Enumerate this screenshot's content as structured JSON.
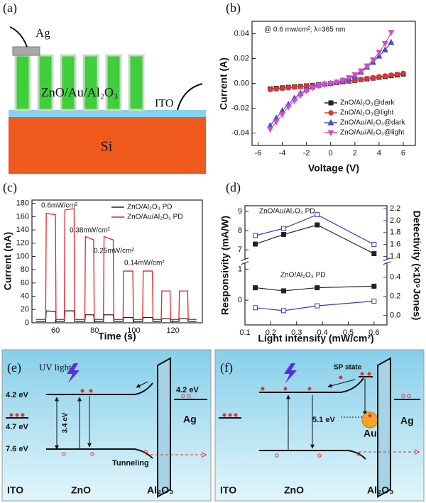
{
  "diagrams": {
    "a": {
      "label": "(a)",
      "electrode": "Ag",
      "nanorods": "ZnO/Au/Al₂O₃",
      "contact": "ITO",
      "substrate": "Si"
    },
    "e": {
      "label": "(e)",
      "light": "UV light",
      "levels": [
        "4.2 eV",
        "4.7 eV",
        "3.4 eV",
        "7.6 eV",
        "4.2 eV"
      ],
      "process": "Tunneling",
      "materials": [
        "ITO",
        "ZnO",
        "Al₂O₃",
        "Ag"
      ]
    },
    "f": {
      "label": "(f)",
      "state": "SP state",
      "levels": [
        "5.1 eV"
      ],
      "particle": "Au",
      "materials": [
        "ITO",
        "ZnO",
        "Al₂O₃",
        "Ag"
      ]
    }
  },
  "chart_data": [
    {
      "type": "line",
      "panel": "(b)",
      "xlabel": "Voltage (V)",
      "ylabel": "Current (A)",
      "annotations": [
        "@ 0.6 mw/cm²; λ=365 nm"
      ],
      "x": [
        -5,
        -4.5,
        -4,
        -3.5,
        -3,
        -2.5,
        -2,
        -1.5,
        -1,
        -0.5,
        0,
        0.5,
        1,
        1.5,
        2,
        2.5,
        3,
        3.5,
        4,
        4.5,
        5,
        5.5,
        6
      ],
      "xlim": [
        -6.5,
        7
      ],
      "xticks": [
        -6,
        -4,
        -2,
        0,
        2,
        4,
        6
      ],
      "ylim": [
        -0.05,
        0.05
      ],
      "yticks": [
        -0.04,
        -0.02,
        {
          "value": 0,
          "label": "0.00"
        },
        0.02,
        0.04
      ],
      "legend": "lower right",
      "series": [
        {
          "name": "ZnO/Al₂O₃@dark",
          "color": "#222222",
          "marker": "square",
          "values": [
            -0.0045,
            -0.004,
            -0.0036,
            -0.0032,
            -0.0028,
            -0.0024,
            -0.002,
            -0.0016,
            -0.0011,
            -0.0006,
            0,
            0.0006,
            0.0012,
            0.0018,
            0.0024,
            0.003,
            0.0036,
            0.0042,
            0.0049,
            0.0055,
            0.0062,
            0.0068,
            0.0075
          ]
        },
        {
          "name": "ZnO/Al₂O₃@light",
          "color": "#d8363a",
          "marker": "circle",
          "values": [
            -0.005,
            -0.0045,
            -0.004,
            -0.0036,
            -0.0031,
            -0.0027,
            -0.0022,
            -0.0017,
            -0.0012,
            -0.0006,
            0,
            0.0006,
            0.0013,
            0.0019,
            0.0026,
            0.0032,
            0.0039,
            0.0046,
            0.0053,
            0.006,
            0.0067,
            0.0074,
            0.0081
          ]
        },
        {
          "name": "ZnO/Au/Al₂O₃@dark",
          "color": "#4a4ad0",
          "marker": "triangle",
          "values": [
            -0.034,
            -0.028,
            -0.022,
            -0.017,
            -0.012,
            -0.008,
            -0.005,
            -0.003,
            -0.0015,
            -0.0005,
            0,
            0.0008,
            0.002,
            0.004,
            0.006,
            0.009,
            0.013,
            0.017,
            0.022,
            0.027,
            0.033,
            null,
            null
          ]
        },
        {
          "name": "ZnO/Au/Al₂O₃@light",
          "color": "#d050c0",
          "marker": "triangle-down",
          "values": [
            -0.037,
            -0.031,
            -0.025,
            -0.019,
            -0.014,
            -0.0095,
            -0.006,
            -0.0035,
            -0.0018,
            -0.0006,
            0,
            0.001,
            0.0025,
            0.0045,
            0.007,
            0.01,
            0.014,
            0.019,
            0.025,
            0.032,
            0.041,
            null,
            null
          ]
        }
      ]
    },
    {
      "type": "line",
      "panel": "(c)",
      "xlabel": "Time (s)",
      "ylabel": "Current (nA)",
      "annotations": [
        "0.6mW/cm²",
        "0.38mW/cm²",
        "0.25mW/cm²",
        "0.14mW/cm²"
      ],
      "x": [
        50,
        55,
        55.3,
        60,
        60.3,
        64.5,
        64.8,
        69.5,
        69.8,
        75,
        75.3,
        79.5,
        79.8,
        84.5,
        84.8,
        89.5,
        89.8,
        94.5,
        94.8,
        99.5,
        99.8,
        104.5,
        104.8,
        109.5,
        109.8,
        114,
        114.3,
        118.5,
        118.8,
        123,
        123.3,
        127.5,
        127.8,
        132
      ],
      "xlim": [
        48,
        135
      ],
      "xticks": [
        60,
        80,
        100,
        120
      ],
      "ylim": [
        0,
        185
      ],
      "yticks": [
        0,
        20,
        40,
        60,
        80,
        100,
        120,
        140,
        160,
        180
      ],
      "legend": "upper right",
      "series": [
        {
          "name": "ZnO/Al₂O₃ PD",
          "color": "#222222",
          "values": [
            2,
            2,
            18,
            17,
            2,
            2,
            18,
            18,
            2,
            2,
            12,
            12,
            2,
            2,
            12,
            12,
            2,
            2,
            8,
            8,
            2,
            2,
            8,
            8,
            2,
            2,
            6,
            6,
            2,
            2,
            6,
            6,
            2,
            2
          ]
        },
        {
          "name": "ZnO/Au/Al₂O₃ PD",
          "color": "#e0262b",
          "values": [
            5,
            5,
            165,
            163,
            5,
            5,
            170,
            172,
            5,
            5,
            130,
            125,
            5,
            5,
            130,
            125,
            5,
            5,
            78,
            78,
            5,
            5,
            78,
            78,
            5,
            5,
            48,
            48,
            5,
            5,
            48,
            48,
            5,
            5
          ]
        }
      ]
    },
    {
      "type": "line",
      "panel": "(d)",
      "xlabel": "Light intensity (mW/cm²)",
      "ylabel": "Responsivity (mA/W)",
      "y2label": "Detectivity (×10⁹Jones)",
      "annotations": [
        "ZnO/Au/Al₂O₃ PD",
        "ZnO/Al₂O₃ PD"
      ],
      "x": [
        0.14,
        0.25,
        0.38,
        0.6
      ],
      "xlim": [
        0.1,
        0.65
      ],
      "xticks": [
        0.1,
        0.2,
        0.3,
        0.4,
        0.5,
        0.6
      ],
      "ylim": [
        -0.8,
        9.3
      ],
      "ybreak": [
        1.2,
        6.5
      ],
      "yticks": [
        0,
        1,
        7,
        8,
        9
      ],
      "y2lim": [
        -0.1,
        2.25
      ],
      "y2break": [
        0.55,
        1.35
      ],
      "y2ticks": [
        {
          "value": 0,
          "label": "0.0"
        },
        0.2,
        0.4,
        1.4,
        1.6,
        1.8,
        {
          "value": 2,
          "label": "2.0"
        },
        2.2
      ],
      "series": [
        {
          "color": "#222222",
          "marker": "square",
          "values": [
            7.3,
            7.8,
            8.3,
            6.8
          ]
        },
        {
          "color": "#3a3ab0",
          "marker": "square-open",
          "axis": "y2",
          "values": [
            1.75,
            1.87,
            2.1,
            1.6
          ]
        },
        {
          "color": "#222222",
          "marker": "square",
          "values": [
            0.4,
            0.3,
            0.4,
            0.45
          ]
        },
        {
          "color": "#3a3ab0",
          "marker": "square-open",
          "axis": "y2",
          "values": [
            0.08,
            0.05,
            0.1,
            0.15
          ]
        }
      ]
    }
  ]
}
